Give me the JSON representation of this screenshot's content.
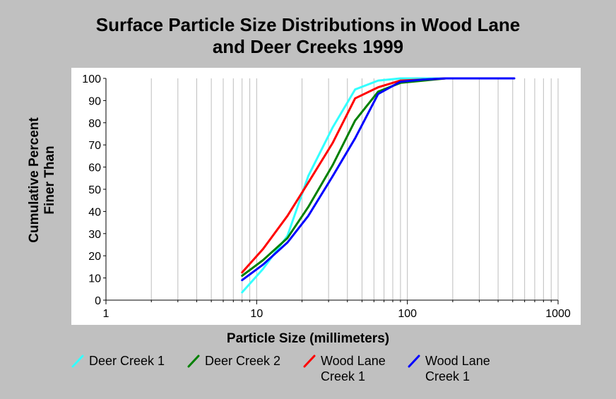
{
  "chart_data": {
    "type": "line",
    "title": [
      "Surface Particle Size Distributions in Wood Lane",
      "and Deer Creeks 1999"
    ],
    "xlabel": "Particle Size (millimeters)",
    "ylabel": [
      "Cumulative Percent",
      "Finer Than"
    ],
    "xscale": "log",
    "xlim": [
      1,
      1000
    ],
    "ylim": [
      0,
      100
    ],
    "xticks": [
      1,
      10,
      100,
      1000
    ],
    "xtick_labels": [
      "1",
      "10",
      "100",
      "1000"
    ],
    "yticks": [
      0,
      10,
      20,
      30,
      40,
      50,
      60,
      70,
      80,
      90,
      100
    ],
    "ytick_labels": [
      "0",
      "10",
      "20",
      "30",
      "40",
      "50",
      "60",
      "70",
      "80",
      "90",
      "100"
    ],
    "grid": true,
    "legend_position": "bottom",
    "series": [
      {
        "name": "Deer Creek 1",
        "color": "#33ffff",
        "x": [
          8,
          11,
          16,
          22,
          32,
          45,
          64,
          90,
          128,
          180
        ],
        "y": [
          3.5,
          14,
          29,
          56,
          78,
          95,
          99,
          100,
          100,
          100
        ]
      },
      {
        "name": "Deer Creek 2",
        "color": "#008000",
        "x": [
          8,
          11,
          16,
          22,
          32,
          45,
          64,
          90,
          128,
          180,
          256
        ],
        "y": [
          11,
          18,
          28,
          42,
          61,
          81,
          94,
          98,
          99,
          100,
          100
        ]
      },
      {
        "name": "Wood Lane\nCreek 1",
        "color": "#ff0000",
        "x": [
          8,
          11,
          16,
          22,
          32,
          45,
          64,
          90,
          128,
          180,
          256
        ],
        "y": [
          12.5,
          23,
          38,
          53,
          71,
          91,
          96,
          99,
          99.5,
          100,
          100
        ]
      },
      {
        "name": "Wood Lane\nCreek 1",
        "color": "#0000ff",
        "x": [
          8,
          11,
          16,
          22,
          32,
          45,
          64,
          90,
          128,
          180,
          256,
          512
        ],
        "y": [
          9,
          16,
          26,
          38,
          56,
          73,
          93,
          98.5,
          99.5,
          100,
          100,
          100
        ]
      }
    ]
  }
}
